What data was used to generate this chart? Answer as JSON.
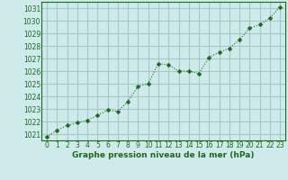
{
  "x": [
    0,
    1,
    2,
    3,
    4,
    5,
    6,
    7,
    8,
    9,
    10,
    11,
    12,
    13,
    14,
    15,
    16,
    17,
    18,
    19,
    20,
    21,
    22,
    23
  ],
  "y": [
    1020.8,
    1021.3,
    1021.7,
    1021.9,
    1022.1,
    1022.5,
    1022.9,
    1022.8,
    1023.6,
    1024.8,
    1025.0,
    1026.6,
    1026.5,
    1026.0,
    1026.0,
    1025.8,
    1027.1,
    1027.5,
    1027.8,
    1028.5,
    1029.4,
    1029.7,
    1030.2,
    1031.1
  ],
  "line_color": "#1a6b1a",
  "marker": "D",
  "marker_size": 2.5,
  "bg_color": "#ceeaea",
  "grid_color": "#a8c8c8",
  "xlabel": "Graphe pression niveau de la mer (hPa)",
  "xlabel_color": "#1a6b1a",
  "tick_color": "#1a6b1a",
  "ylim": [
    1020.5,
    1031.5
  ],
  "xlim": [
    -0.5,
    23.5
  ],
  "yticks": [
    1021,
    1022,
    1023,
    1024,
    1025,
    1026,
    1027,
    1028,
    1029,
    1030,
    1031
  ],
  "xticks": [
    0,
    1,
    2,
    3,
    4,
    5,
    6,
    7,
    8,
    9,
    10,
    11,
    12,
    13,
    14,
    15,
    16,
    17,
    18,
    19,
    20,
    21,
    22,
    23
  ],
  "tick_fontsize": 5.5,
  "xlabel_fontsize": 6.5
}
